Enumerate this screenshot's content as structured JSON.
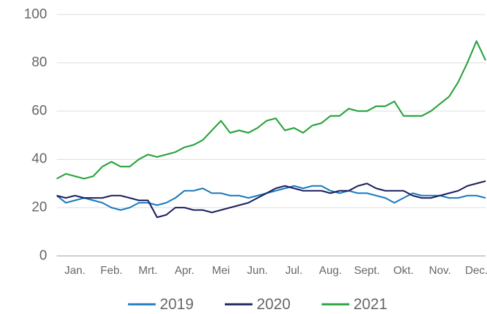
{
  "chart_data": {
    "type": "line",
    "categories": [
      null,
      null,
      "Jan.",
      null,
      null,
      null,
      "Feb.",
      null,
      null,
      null,
      "Mrt.",
      null,
      null,
      null,
      "Apr.",
      null,
      null,
      null,
      "Mei",
      null,
      null,
      null,
      "Jun.",
      null,
      null,
      null,
      "Jul.",
      null,
      null,
      null,
      "Aug.",
      null,
      null,
      null,
      "Sept.",
      null,
      null,
      null,
      "Okt.",
      null,
      null,
      null,
      "Nov.",
      null,
      null,
      null,
      "Dec.",
      null
    ],
    "series": [
      {
        "name": "2019",
        "color": "#1b7bc0",
        "values": [
          25,
          22,
          23,
          24,
          23,
          22,
          20,
          19,
          20,
          22,
          22,
          21,
          22,
          24,
          27,
          27,
          28,
          26,
          26,
          25,
          25,
          24,
          25,
          26,
          27,
          28,
          29,
          28,
          29,
          29,
          27,
          26,
          27,
          26,
          26,
          25,
          24,
          22,
          24,
          26,
          25,
          25,
          25,
          24,
          24,
          25,
          25,
          24
        ]
      },
      {
        "name": "2020",
        "color": "#1d2161",
        "values": [
          25,
          24,
          25,
          24,
          24,
          24,
          25,
          25,
          24,
          23,
          23,
          16,
          17,
          20,
          20,
          19,
          19,
          18,
          19,
          20,
          21,
          22,
          24,
          26,
          28,
          29,
          28,
          27,
          27,
          27,
          26,
          27,
          27,
          29,
          30,
          28,
          27,
          27,
          27,
          25,
          24,
          24,
          25,
          26,
          27,
          29,
          30,
          31
        ]
      },
      {
        "name": "2021",
        "color": "#27a33a",
        "values": [
          32,
          34,
          33,
          32,
          33,
          37,
          39,
          37,
          37,
          40,
          42,
          41,
          42,
          43,
          45,
          46,
          48,
          52,
          56,
          51,
          52,
          51,
          53,
          56,
          57,
          52,
          53,
          51,
          54,
          55,
          58,
          58,
          61,
          60,
          60,
          62,
          62,
          64,
          58,
          58,
          58,
          60,
          63,
          66,
          72,
          80,
          89,
          81
        ]
      }
    ],
    "ylim": [
      0,
      100
    ],
    "yticks": [
      0,
      20,
      40,
      60,
      80,
      100
    ],
    "grid": true
  }
}
